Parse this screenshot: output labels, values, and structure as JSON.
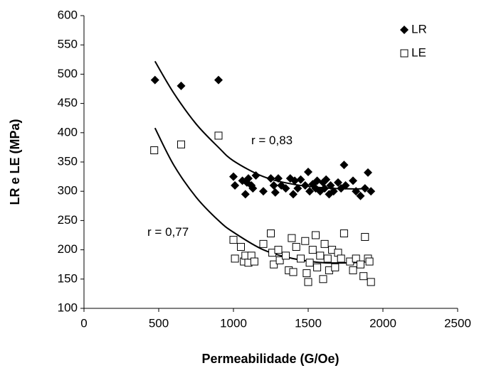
{
  "chart_data": {
    "type": "scatter",
    "xlabel": "Permeabilidade (G/Oe)",
    "ylabel": "LR e LE (MPa)",
    "xlim": [
      0,
      2500
    ],
    "xticks": [
      0,
      500,
      1000,
      1500,
      2000,
      2500
    ],
    "ylim": [
      100,
      600
    ],
    "yticks": [
      100,
      150,
      200,
      250,
      300,
      350,
      400,
      450,
      500,
      550,
      600
    ],
    "legend": "top-right",
    "series": [
      {
        "name": "LR",
        "color": "#000000",
        "marker": "diamond",
        "x": [
          475,
          650,
          900,
          1000,
          1010,
          1060,
          1080,
          1090,
          1100,
          1120,
          1130,
          1150,
          1200,
          1250,
          1270,
          1280,
          1300,
          1320,
          1350,
          1380,
          1400,
          1410,
          1430,
          1450,
          1480,
          1500,
          1510,
          1530,
          1550,
          1560,
          1580,
          1600,
          1610,
          1620,
          1640,
          1650,
          1670,
          1700,
          1720,
          1740,
          1750,
          1800,
          1820,
          1850,
          1880,
          1900,
          1920
        ],
        "values": [
          490,
          480,
          490,
          325,
          310,
          318,
          295,
          315,
          322,
          310,
          305,
          327,
          300,
          322,
          310,
          298,
          322,
          310,
          305,
          322,
          295,
          318,
          305,
          320,
          310,
          333,
          300,
          312,
          305,
          318,
          300,
          315,
          305,
          320,
          295,
          310,
          300,
          315,
          305,
          345,
          310,
          318,
          300,
          292,
          305,
          332,
          300
        ]
      },
      {
        "name": "LE",
        "color": "#000000",
        "marker": "square",
        "x": [
          470,
          650,
          900,
          1000,
          1010,
          1050,
          1070,
          1080,
          1100,
          1120,
          1140,
          1200,
          1250,
          1260,
          1270,
          1300,
          1310,
          1350,
          1370,
          1390,
          1400,
          1420,
          1450,
          1480,
          1490,
          1500,
          1510,
          1530,
          1550,
          1560,
          1580,
          1600,
          1610,
          1630,
          1640,
          1660,
          1680,
          1700,
          1720,
          1740,
          1780,
          1800,
          1820,
          1850,
          1870,
          1880,
          1900,
          1910,
          1920
        ],
        "values": [
          370,
          380,
          395,
          217,
          185,
          205,
          180,
          190,
          178,
          190,
          180,
          210,
          228,
          195,
          175,
          200,
          182,
          190,
          165,
          220,
          162,
          205,
          185,
          215,
          160,
          145,
          178,
          200,
          225,
          170,
          190,
          150,
          210,
          185,
          165,
          200,
          170,
          195,
          185,
          228,
          180,
          165,
          185,
          175,
          155,
          222,
          185,
          180,
          145
        ]
      }
    ],
    "trendlines": [
      {
        "x": [
          475,
          600,
          750,
          900,
          1000,
          1200,
          1400,
          1600,
          1800,
          1900
        ],
        "values": [
          522,
          468,
          415,
          375,
          352,
          325,
          312,
          306,
          304,
          305
        ]
      },
      {
        "x": [
          475,
          600,
          750,
          900,
          1000,
          1200,
          1400,
          1600,
          1800,
          1900
        ],
        "values": [
          408,
          345,
          290,
          250,
          230,
          200,
          185,
          178,
          178,
          180
        ]
      }
    ],
    "annotations": [
      {
        "text": "r = 0,83",
        "x": 1119,
        "y": 386
      },
      {
        "text": "r = 0,77",
        "x": 424,
        "y": 229
      }
    ]
  }
}
